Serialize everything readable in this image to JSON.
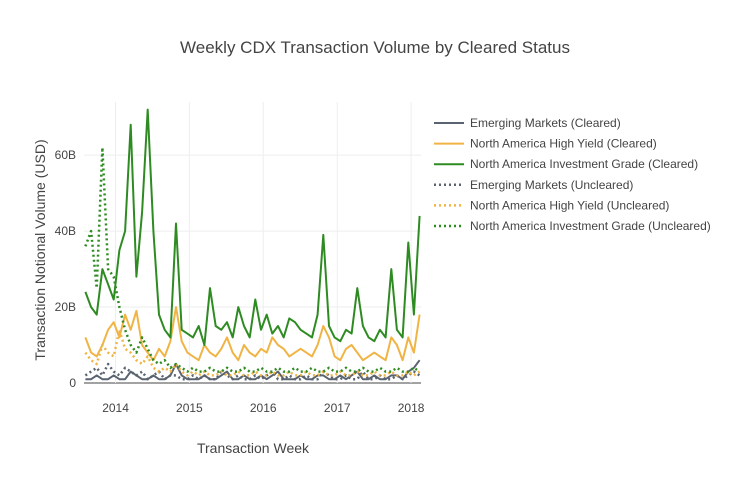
{
  "chart_data": {
    "type": "line",
    "title": "Weekly CDX Transaction Volume by Cleared Status",
    "xlabel": "Transaction Week",
    "ylabel": "Transaction Notional Volume (USD)",
    "x_ticks": [
      "2014",
      "2015",
      "2016",
      "2017",
      "2018"
    ],
    "y_ticks": [
      "0",
      "20B",
      "40B",
      "60B"
    ],
    "xlim": [
      "2013-07-29",
      "2018-02-19"
    ],
    "ylim": [
      0,
      74
    ],
    "y_unit": "billions USD",
    "grid": true,
    "legend_position": "right",
    "x": [
      "2013-08-05",
      "2013-09-02",
      "2013-09-30",
      "2013-10-28",
      "2013-11-25",
      "2013-12-23",
      "2014-01-20",
      "2014-02-17",
      "2014-03-17",
      "2014-04-14",
      "2014-05-12",
      "2014-06-09",
      "2014-07-07",
      "2014-08-04",
      "2014-09-01",
      "2014-09-29",
      "2014-10-27",
      "2014-11-24",
      "2014-12-22",
      "2015-01-19",
      "2015-02-16",
      "2015-03-16",
      "2015-04-13",
      "2015-05-11",
      "2015-06-08",
      "2015-07-06",
      "2015-08-03",
      "2015-08-31",
      "2015-09-28",
      "2015-10-26",
      "2015-11-23",
      "2015-12-21",
      "2016-01-18",
      "2016-02-15",
      "2016-03-14",
      "2016-04-11",
      "2016-05-09",
      "2016-06-06",
      "2016-07-04",
      "2016-08-01",
      "2016-08-29",
      "2016-09-26",
      "2016-10-24",
      "2016-11-21",
      "2016-12-19",
      "2017-01-16",
      "2017-02-13",
      "2017-03-13",
      "2017-04-10",
      "2017-05-08",
      "2017-06-05",
      "2017-07-03",
      "2017-07-31",
      "2017-08-28",
      "2017-09-25",
      "2017-10-23",
      "2017-11-20",
      "2017-12-18",
      "2018-01-15",
      "2018-02-12"
    ],
    "series": [
      {
        "name": "Emerging Markets (Cleared)",
        "color": "#5a6470",
        "dash": "solid",
        "values": [
          1,
          1,
          2,
          1,
          1,
          2,
          1,
          1,
          3,
          2,
          1,
          1,
          2,
          1,
          1,
          2,
          5,
          2,
          1,
          1,
          1,
          2,
          1,
          1,
          2,
          3,
          1,
          1,
          2,
          1,
          1,
          2,
          1,
          2,
          3,
          1,
          1,
          1,
          2,
          1,
          1,
          2,
          2,
          1,
          1,
          2,
          1,
          2,
          3,
          1,
          1,
          2,
          1,
          1,
          2,
          2,
          1,
          3,
          4,
          6
        ]
      },
      {
        "name": "North America High Yield (Cleared)",
        "color": "#f0b445",
        "dash": "solid",
        "values": [
          12,
          8,
          7,
          10,
          14,
          16,
          12,
          18,
          14,
          19,
          10,
          8,
          6,
          9,
          7,
          11,
          20,
          11,
          8,
          7,
          6,
          10,
          8,
          7,
          9,
          12,
          8,
          6,
          10,
          8,
          7,
          9,
          8,
          12,
          10,
          9,
          7,
          8,
          9,
          8,
          7,
          10,
          15,
          12,
          7,
          6,
          9,
          10,
          8,
          6,
          7,
          8,
          7,
          6,
          12,
          10,
          6,
          12,
          8,
          18
        ]
      },
      {
        "name": "North America Investment Grade (Cleared)",
        "color": "#2e8b22",
        "dash": "solid",
        "values": [
          24,
          20,
          18,
          30,
          26,
          22,
          35,
          40,
          68,
          28,
          45,
          72,
          40,
          18,
          14,
          12,
          42,
          14,
          13,
          12,
          15,
          10,
          25,
          15,
          14,
          16,
          12,
          20,
          15,
          12,
          22,
          14,
          18,
          13,
          15,
          12,
          17,
          16,
          14,
          13,
          12,
          18,
          39,
          15,
          12,
          11,
          14,
          13,
          25,
          15,
          12,
          11,
          14,
          12,
          30,
          14,
          12,
          37,
          18,
          44
        ]
      },
      {
        "name": "Emerging Markets (Uncleared)",
        "color": "#5a6470",
        "dash": "dot",
        "values": [
          2,
          3,
          4,
          2,
          5,
          3,
          2,
          4,
          3,
          2,
          3,
          1,
          2,
          3,
          1,
          2,
          2,
          1,
          1,
          2,
          1,
          2,
          1,
          1,
          3,
          2,
          1,
          2,
          1,
          1,
          2,
          1,
          2,
          3,
          1,
          1,
          2,
          1,
          1,
          2,
          1,
          1,
          3,
          2,
          1,
          1,
          2,
          1,
          1,
          3,
          1,
          1,
          2,
          1,
          1,
          2,
          1,
          2,
          3,
          2
        ]
      },
      {
        "name": "North America High Yield (Uncleared)",
        "color": "#f0b445",
        "dash": "dot",
        "values": [
          8,
          6,
          5,
          10,
          8,
          7,
          14,
          9,
          8,
          6,
          5,
          7,
          4,
          3,
          4,
          3,
          5,
          3,
          2,
          3,
          2,
          3,
          2,
          2,
          3,
          2,
          2,
          3,
          2,
          2,
          3,
          2,
          2,
          3,
          2,
          2,
          3,
          2,
          2,
          3,
          2,
          2,
          3,
          2,
          2,
          3,
          2,
          2,
          3,
          2,
          2,
          3,
          2,
          2,
          3,
          2,
          2,
          3,
          2,
          3
        ]
      },
      {
        "name": "North America Investment Grade (Uncleared)",
        "color": "#2e8b22",
        "dash": "dot",
        "values": [
          36,
          40,
          25,
          62,
          30,
          28,
          20,
          14,
          10,
          8,
          12,
          9,
          6,
          5,
          6,
          4,
          5,
          4,
          3,
          4,
          3,
          3,
          4,
          3,
          3,
          4,
          3,
          3,
          4,
          3,
          3,
          4,
          3,
          3,
          4,
          3,
          3,
          4,
          3,
          3,
          4,
          3,
          3,
          4,
          3,
          3,
          4,
          3,
          3,
          4,
          3,
          3,
          4,
          3,
          3,
          4,
          3,
          3,
          4,
          3
        ]
      }
    ]
  }
}
